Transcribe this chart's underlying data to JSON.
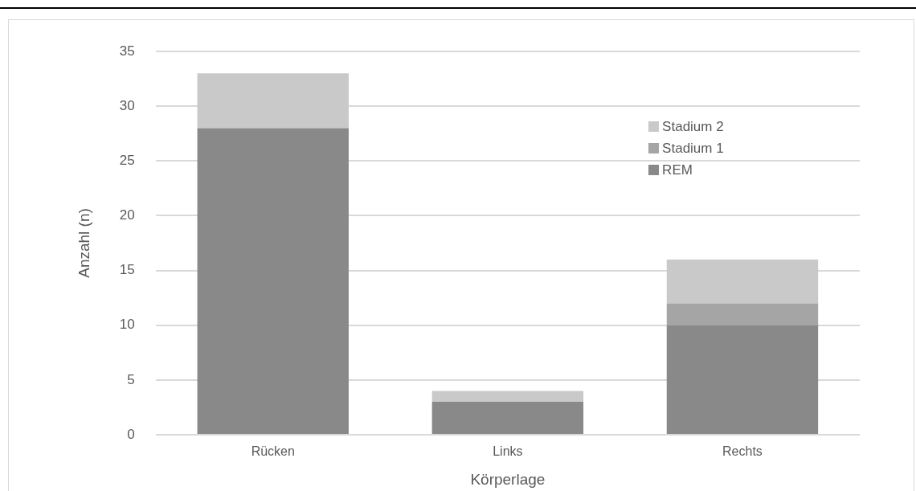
{
  "chart_data": {
    "type": "bar",
    "stacked": true,
    "xlabel": "Körperlage",
    "ylabel": "Anzahl (n)",
    "categories": [
      "Rücken",
      "Links",
      "Rechts"
    ],
    "series": [
      {
        "name": "REM",
        "color": "#898989",
        "values": [
          28,
          3,
          10
        ]
      },
      {
        "name": "Stadium 1",
        "color": "#a5a5a5",
        "values": [
          0,
          0,
          2
        ]
      },
      {
        "name": "Stadium 2",
        "color": "#c9c9c9",
        "values": [
          5,
          1,
          4
        ]
      }
    ],
    "ylim": [
      0,
      35
    ],
    "yticks": [
      0,
      5,
      10,
      15,
      20,
      25,
      30,
      35
    ],
    "grid": "y",
    "legend": "top right"
  }
}
